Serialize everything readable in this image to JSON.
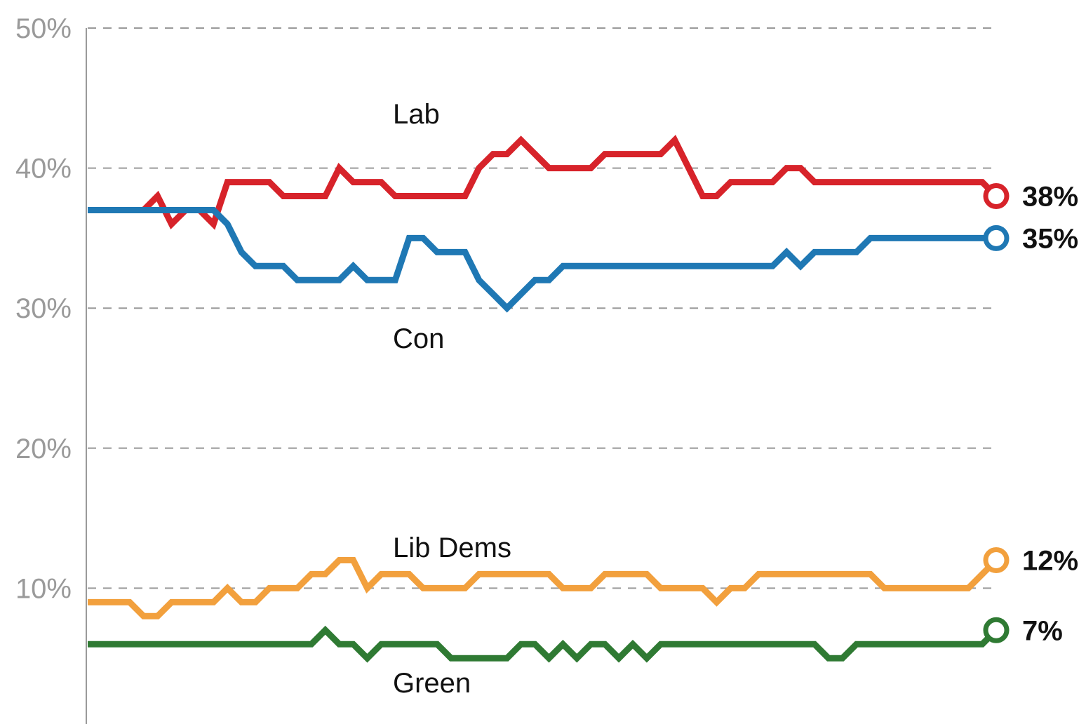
{
  "chart_data": {
    "type": "line",
    "title": "",
    "xlabel": "",
    "ylabel": "",
    "ylim": [
      0,
      50
    ],
    "yticks": [
      10,
      20,
      30,
      40,
      50
    ],
    "ytick_labels": [
      "10%",
      "20%",
      "30%",
      "40%",
      "50%"
    ],
    "grid": true,
    "n_points": 66,
    "series": [
      {
        "name": "Lab",
        "color": "#d7232a",
        "end_label": "38%",
        "values": [
          37,
          37,
          37,
          37,
          37,
          38,
          36,
          37,
          37,
          36,
          39,
          39,
          39,
          39,
          38,
          38,
          38,
          38,
          40,
          39,
          39,
          39,
          38,
          38,
          38,
          38,
          38,
          38,
          40,
          41,
          41,
          42,
          41,
          40,
          40,
          40,
          40,
          41,
          41,
          41,
          41,
          41,
          42,
          40,
          38,
          38,
          39,
          39,
          39,
          39,
          40,
          40,
          39,
          39,
          39,
          39,
          39,
          39,
          39,
          39,
          39,
          39,
          39,
          39,
          39,
          38
        ]
      },
      {
        "name": "Con",
        "color": "#1f78b4",
        "end_label": "35%",
        "values": [
          37,
          37,
          37,
          37,
          37,
          37,
          37,
          37,
          37,
          37,
          36,
          34,
          33,
          33,
          33,
          32,
          32,
          32,
          32,
          33,
          32,
          32,
          32,
          35,
          35,
          34,
          34,
          34,
          32,
          31,
          30,
          31,
          32,
          32,
          33,
          33,
          33,
          33,
          33,
          33,
          33,
          33,
          33,
          33,
          33,
          33,
          33,
          33,
          33,
          33,
          34,
          33,
          34,
          34,
          34,
          34,
          35,
          35,
          35,
          35,
          35,
          35,
          35,
          35,
          35,
          35
        ]
      },
      {
        "name": "Lib Dems",
        "color": "#f2a03d",
        "end_label": "12%",
        "values": [
          9,
          9,
          9,
          9,
          8,
          8,
          9,
          9,
          9,
          9,
          10,
          9,
          9,
          10,
          10,
          10,
          11,
          11,
          12,
          12,
          10,
          11,
          11,
          11,
          10,
          10,
          10,
          10,
          11,
          11,
          11,
          11,
          11,
          11,
          10,
          10,
          10,
          11,
          11,
          11,
          11,
          10,
          10,
          10,
          10,
          9,
          10,
          10,
          11,
          11,
          11,
          11,
          11,
          11,
          11,
          11,
          11,
          10,
          10,
          10,
          10,
          10,
          10,
          10,
          11,
          12
        ]
      },
      {
        "name": "Green",
        "color": "#2f7a33",
        "end_label": "7%",
        "values": [
          6,
          6,
          6,
          6,
          6,
          6,
          6,
          6,
          6,
          6,
          6,
          6,
          6,
          6,
          6,
          6,
          6,
          7,
          6,
          6,
          5,
          6,
          6,
          6,
          6,
          6,
          5,
          5,
          5,
          5,
          5,
          6,
          6,
          5,
          6,
          5,
          6,
          6,
          5,
          6,
          5,
          6,
          6,
          6,
          6,
          6,
          6,
          6,
          6,
          6,
          6,
          6,
          6,
          5,
          5,
          6,
          6,
          6,
          6,
          6,
          6,
          6,
          6,
          6,
          6,
          7
        ]
      }
    ]
  }
}
